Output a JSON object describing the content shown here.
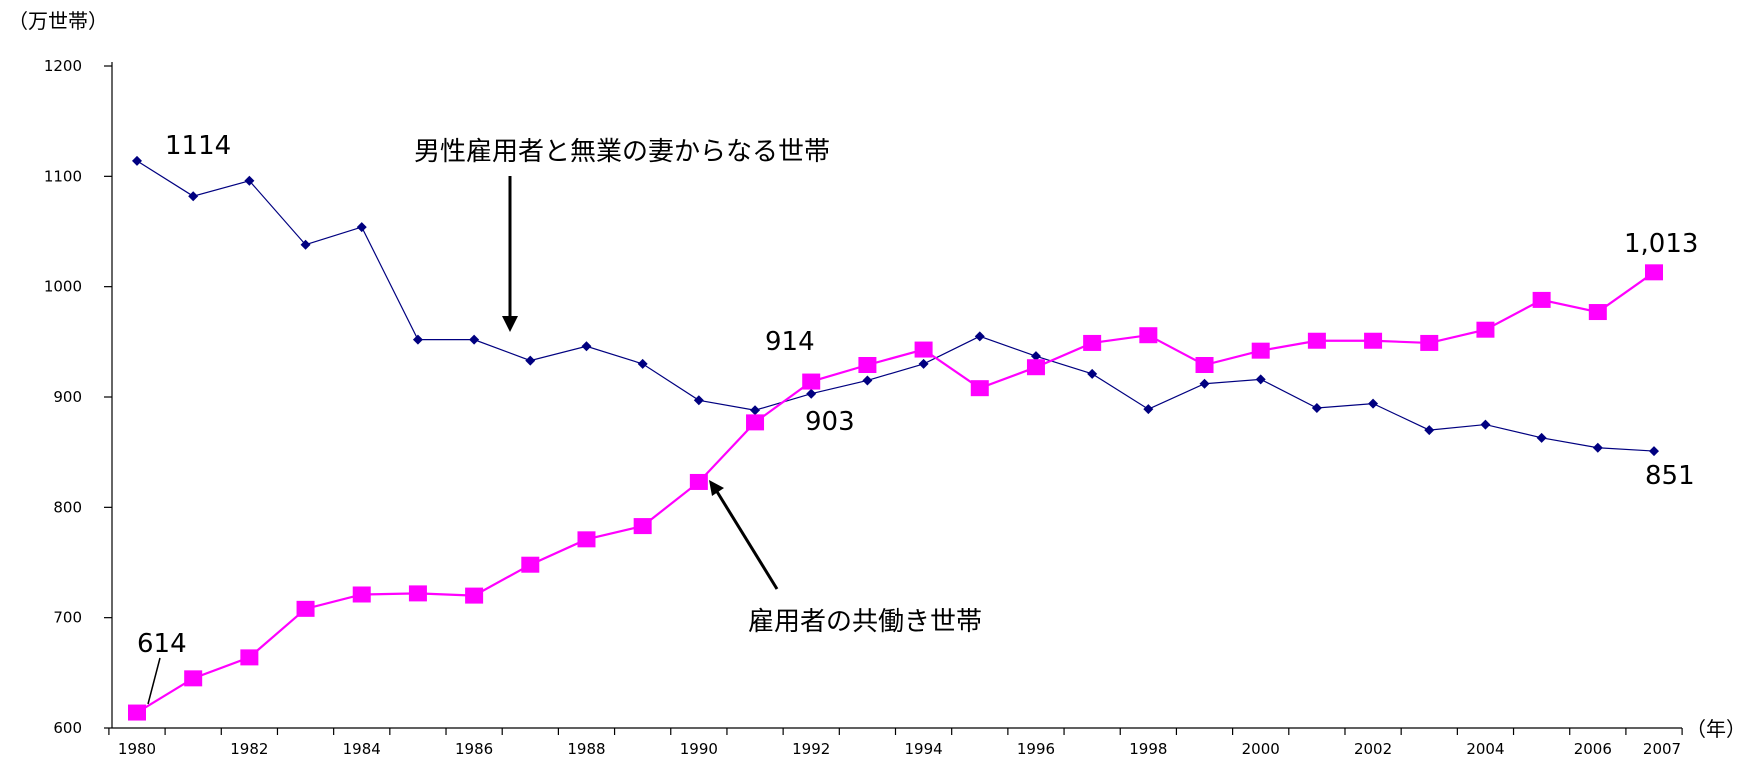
{
  "chart_data": {
    "type": "line",
    "y_unit_label": "（万世帯）",
    "x_unit_label": "（年）",
    "ylim": [
      600,
      1200
    ],
    "yticks": [
      "600",
      "700",
      "800",
      "900",
      "1000",
      "1100",
      "1200"
    ],
    "x": [
      1980,
      1981,
      1982,
      1983,
      1984,
      1985,
      1986,
      1987,
      1988,
      1989,
      1990,
      1991,
      1992,
      1993,
      1994,
      1995,
      1996,
      1997,
      1998,
      1999,
      2000,
      2001,
      2002,
      2003,
      2004,
      2005,
      2006,
      2007
    ],
    "xtick_labels": [
      "1980",
      "1982",
      "1984",
      "1986",
      "1988",
      "1990",
      "1992",
      "1994",
      "1996",
      "1998",
      "2000",
      "2002",
      "2004",
      "2006",
      "2007"
    ],
    "series": [
      {
        "name": "男性雇用者と無業の妻からなる世帯",
        "color": "#000080",
        "marker": "diamond",
        "values": [
          1114,
          1082,
          1096,
          1038,
          1054,
          952,
          952,
          933,
          946,
          930,
          897,
          888,
          903,
          915,
          930,
          955,
          937,
          921,
          889,
          912,
          916,
          890,
          894,
          870,
          875,
          863,
          854,
          851
        ]
      },
      {
        "name": "雇用者の共働き世帯",
        "color": "#ff00ff",
        "marker": "square",
        "values": [
          614,
          645,
          664,
          708,
          721,
          722,
          720,
          748,
          771,
          783,
          823,
          877,
          914,
          929,
          943,
          908,
          927,
          949,
          956,
          929,
          942,
          951,
          951,
          949,
          961,
          988,
          977,
          1013
        ]
      }
    ],
    "data_labels": [
      "1114",
      "914",
      "903",
      "614",
      "1,013",
      "851"
    ],
    "annotations": [
      "男性雇用者と無業の妻からなる世帯",
      "雇用者の共働き世帯"
    ]
  }
}
